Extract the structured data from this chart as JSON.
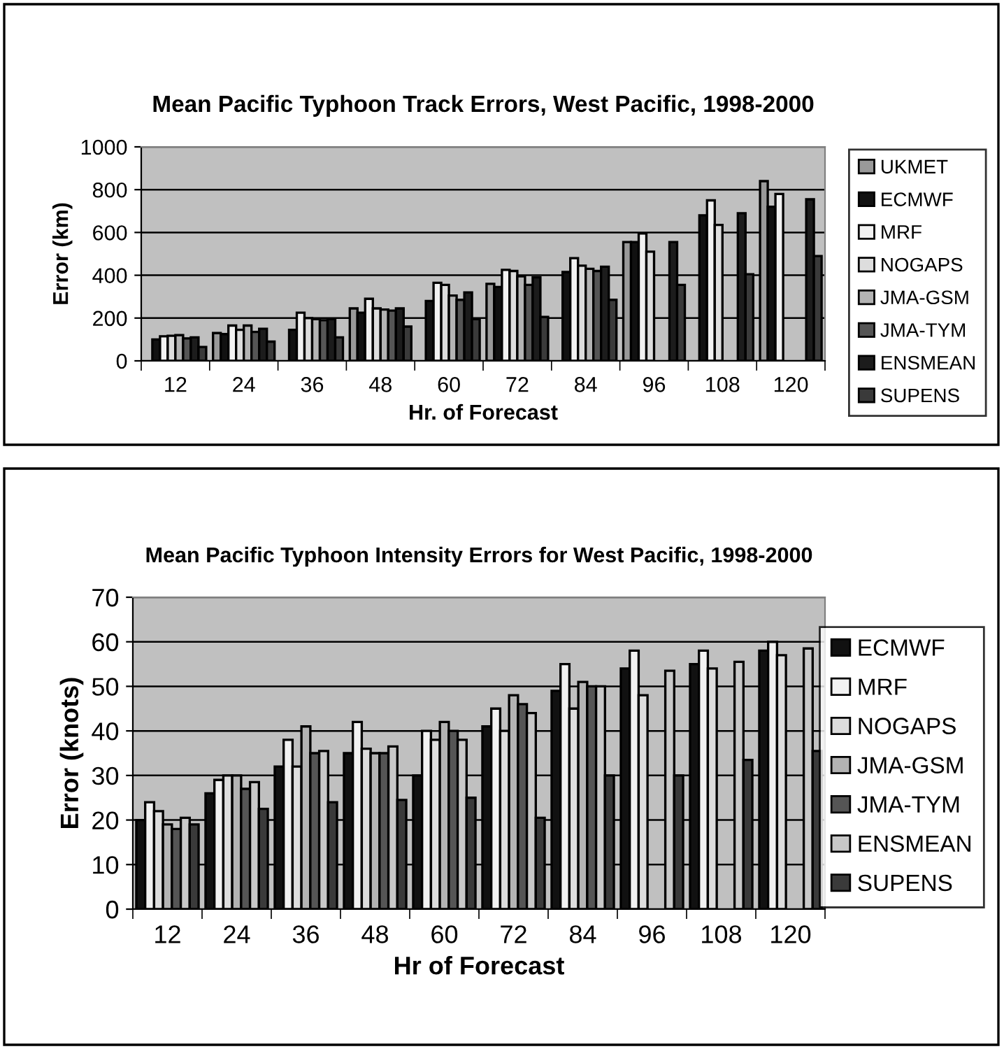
{
  "chart_data": [
    {
      "type": "bar",
      "title": "Mean Pacific Typhoon Track Errors, West Pacific, 1998-2000",
      "xlabel": "Hr. of Forecast",
      "ylabel": "Error (km)",
      "categories": [
        "12",
        "24",
        "36",
        "48",
        "60",
        "72",
        "84",
        "96",
        "108",
        "120"
      ],
      "ylim": [
        0,
        1000
      ],
      "yticks": [
        0,
        200,
        400,
        600,
        800,
        1000
      ],
      "grid": "y",
      "legend": "right",
      "series": [
        {
          "name": "UKMET",
          "color": "#999999",
          "values": [
            null,
            130,
            null,
            245,
            null,
            360,
            null,
            555,
            null,
            840
          ]
        },
        {
          "name": "ECMWF",
          "color": "#111111",
          "values": [
            100,
            125,
            145,
            225,
            280,
            345,
            415,
            555,
            680,
            720
          ]
        },
        {
          "name": "MRF",
          "color": "#f2f2f2",
          "values": [
            115,
            165,
            225,
            290,
            365,
            425,
            480,
            595,
            750,
            780
          ]
        },
        {
          "name": "NOGAPS",
          "color": "#dddddd",
          "values": [
            117,
            145,
            200,
            245,
            355,
            420,
            445,
            510,
            635,
            null
          ]
        },
        {
          "name": "JMA-GSM",
          "color": "#b3b3b3",
          "values": [
            120,
            165,
            195,
            240,
            305,
            395,
            430,
            null,
            null,
            null
          ]
        },
        {
          "name": "JMA-TYM",
          "color": "#555555",
          "values": [
            105,
            135,
            190,
            235,
            285,
            355,
            420,
            null,
            null,
            null
          ]
        },
        {
          "name": "ENSMEAN",
          "color": "#1c1c1c",
          "values": [
            110,
            150,
            195,
            245,
            320,
            390,
            440,
            555,
            690,
            755
          ]
        },
        {
          "name": "SUPENS",
          "color": "#3a3a3a",
          "values": [
            65,
            90,
            110,
            160,
            195,
            205,
            285,
            355,
            405,
            490
          ]
        }
      ]
    },
    {
      "type": "bar",
      "title": "Mean Pacific Typhoon Intensity Errors for West Pacific, 1998-2000",
      "xlabel": "Hr of Forecast",
      "ylabel": "Error (knots)",
      "categories": [
        "12",
        "24",
        "36",
        "48",
        "60",
        "72",
        "84",
        "96",
        "108",
        "120"
      ],
      "ylim": [
        0,
        70
      ],
      "yticks": [
        0,
        10,
        20,
        30,
        40,
        50,
        60,
        70
      ],
      "grid": "y",
      "legend": "right",
      "series": [
        {
          "name": "ECMWF",
          "color": "#111111",
          "values": [
            20,
            26,
            32,
            35,
            30,
            41,
            49,
            54,
            55,
            58
          ]
        },
        {
          "name": "MRF",
          "color": "#f2f2f2",
          "values": [
            24,
            29,
            38,
            42,
            40,
            45,
            55,
            58,
            58,
            60
          ]
        },
        {
          "name": "NOGAPS",
          "color": "#dddddd",
          "values": [
            22,
            30,
            32,
            36,
            38,
            40,
            45,
            48,
            54,
            57
          ]
        },
        {
          "name": "JMA-GSM",
          "color": "#b3b3b3",
          "values": [
            19,
            30,
            41,
            35,
            42,
            48,
            51,
            null,
            null,
            null
          ]
        },
        {
          "name": "JMA-TYM",
          "color": "#555555",
          "values": [
            18,
            27,
            35,
            35,
            40,
            46,
            50,
            null,
            null,
            null
          ]
        },
        {
          "name": "ENSMEAN",
          "color": "#c8c8c8",
          "values": [
            20.5,
            28.5,
            35.5,
            36.5,
            38,
            44,
            50,
            53.5,
            55.5,
            58.5
          ]
        },
        {
          "name": "SUPENS",
          "color": "#3a3a3a",
          "values": [
            19,
            22.5,
            24,
            24.5,
            25,
            20.5,
            30,
            30,
            33.5,
            35.5
          ]
        }
      ]
    }
  ]
}
